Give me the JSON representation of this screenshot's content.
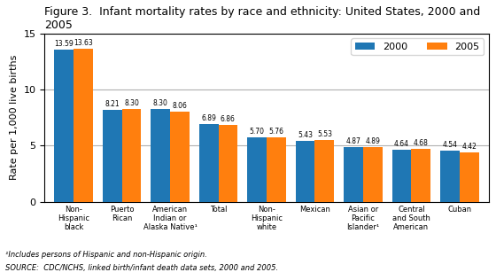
{
  "chart_data": {
    "type": "bar",
    "title": "Figure 3.  Infant mortality rates by race and ethnicity: United States, 2000 and 2005",
    "ylabel": "Rate per 1,000 live births",
    "categories": [
      "Non-\nHispanic\nblack",
      "Puerto\nRican",
      "American\nIndian or\nAlaska Native¹",
      "Total",
      "Non-\nHispanic\nwhite",
      "Mexican",
      "Asian or\nPacific\nIslander¹",
      "Central\nand South\nAmerican",
      "Cuban"
    ],
    "series": [
      {
        "name": "2000",
        "values": [
          13.59,
          8.21,
          8.3,
          6.89,
          5.7,
          5.43,
          4.87,
          4.64,
          4.54
        ],
        "value_labels": [
          "13.59",
          "8.21",
          "8.30",
          "6.89",
          "5.70",
          "5.43",
          "4.87",
          "4.64",
          "4.54"
        ]
      },
      {
        "name": "2005",
        "values": [
          13.63,
          8.3,
          8.06,
          6.86,
          5.76,
          5.53,
          4.89,
          4.68,
          4.42
        ],
        "value_labels": [
          "13.63",
          "8.30",
          "8.06",
          "6.86",
          "5.76",
          "5.53",
          "4.89",
          "4.68",
          "4.42"
        ]
      }
    ],
    "ylim": [
      0,
      15
    ],
    "yticks": [
      0,
      5,
      10,
      15
    ],
    "grid": true,
    "legend": "upper right",
    "data_labels": true,
    "annotations": [
      "¹Includes persons of Hispanic and non-Hispanic origin.",
      "SOURCE:  CDC/NCHS, linked birth/infant death data sets, 2000 and 2005."
    ]
  }
}
